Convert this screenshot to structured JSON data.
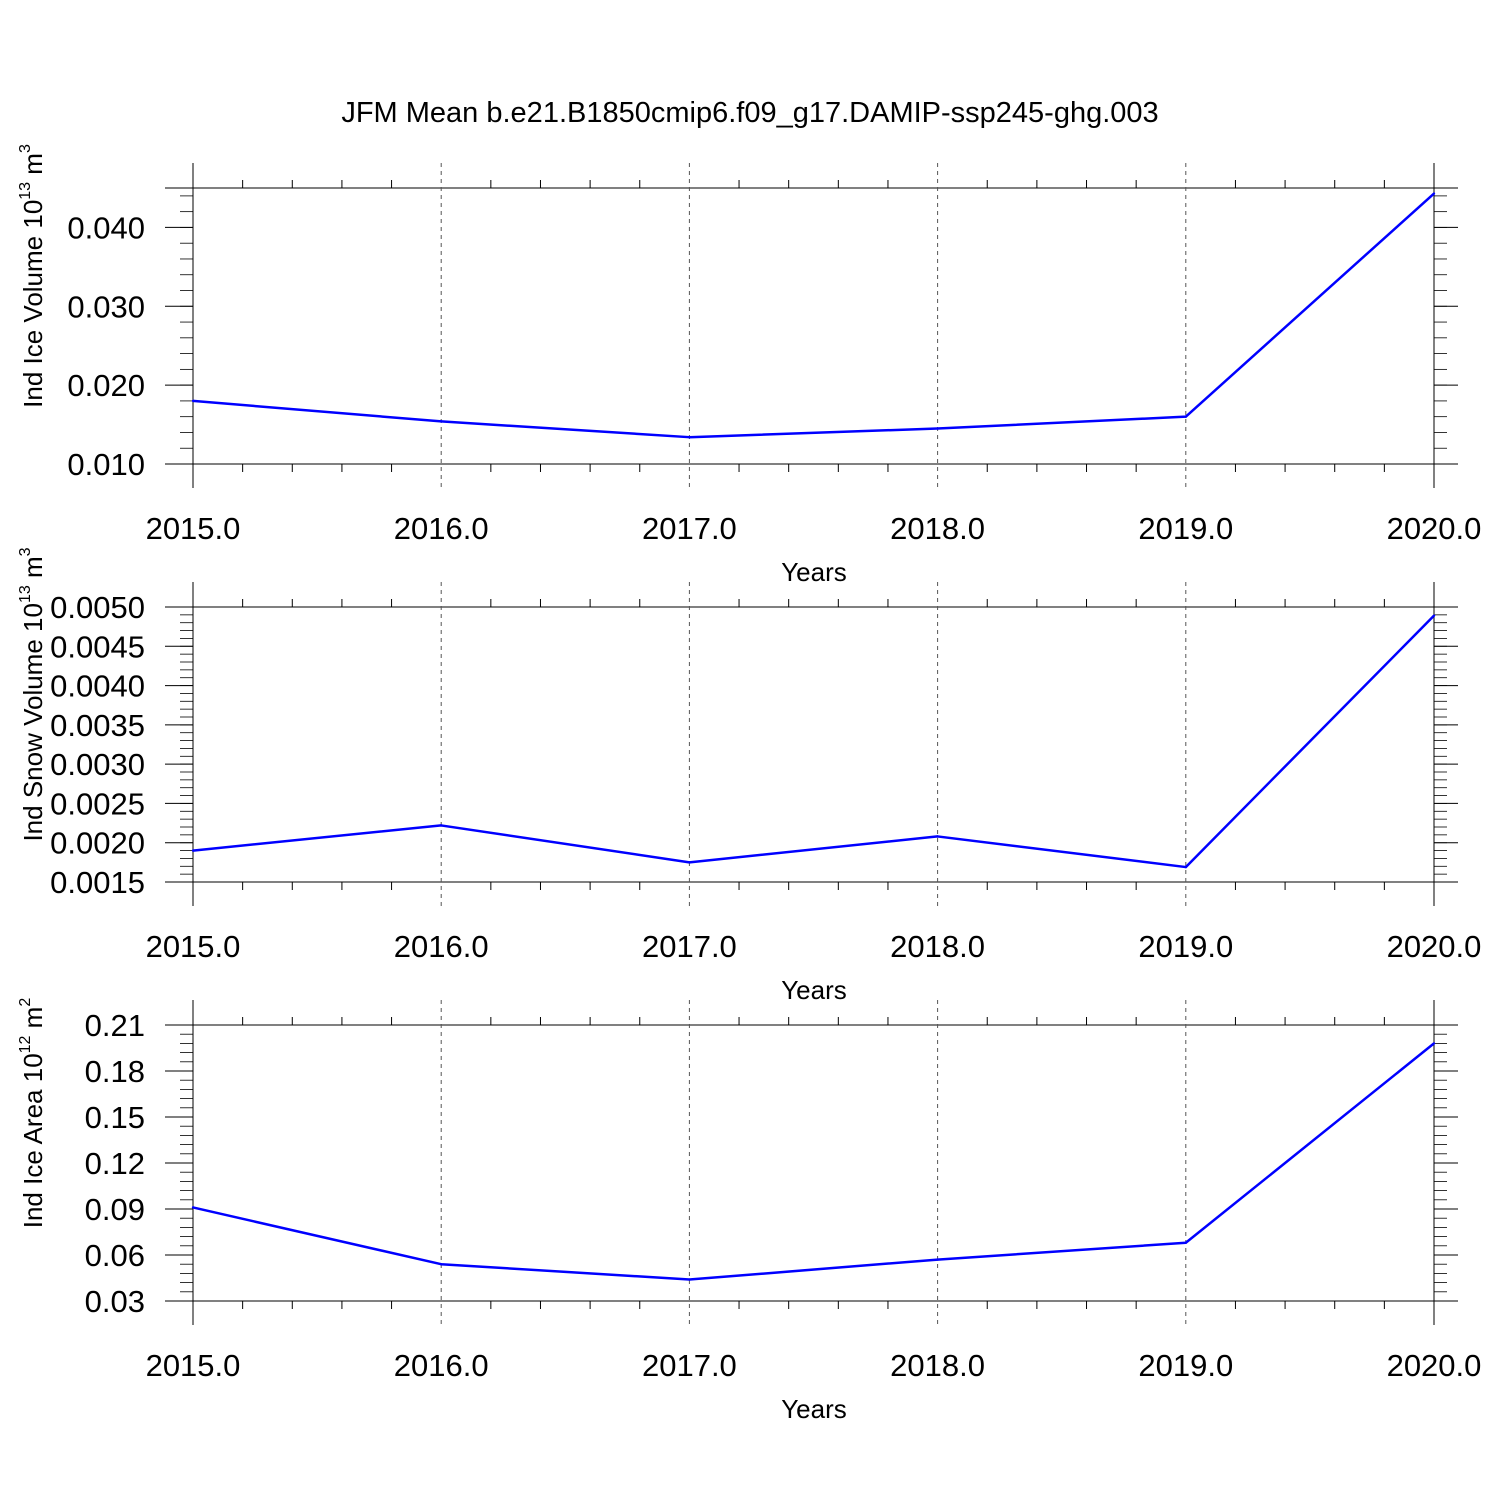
{
  "figure": {
    "title": "JFM Mean b.e21.B1850cmip6.f09_g17.DAMIP-ssp245-ghg.003"
  },
  "chart_data": [
    {
      "type": "line",
      "xlabel": "Years",
      "ylabel": "Ind Ice Volume 10",
      "ylabel_exp": "13",
      "ylabel_unit": " m",
      "ylabel_unit_exp": "3",
      "xlim": [
        2015,
        2020
      ],
      "ylim": [
        0.01,
        0.045
      ],
      "xticks": [
        2015,
        2016,
        2017,
        2018,
        2019,
        2020
      ],
      "xticklabels": [
        "2015.0",
        "2016.0",
        "2017.0",
        "2018.0",
        "2019.0",
        "2020.0"
      ],
      "yticks": [
        0.01,
        0.02,
        0.03,
        0.04
      ],
      "yticklabels": [
        "0.010",
        "0.020",
        "0.030",
        "0.040"
      ],
      "grid": "x dashed",
      "color": "#0000ff",
      "x": [
        2015,
        2016,
        2017,
        2018,
        2019,
        2020
      ],
      "y": [
        0.018,
        0.0154,
        0.0134,
        0.0145,
        0.016,
        0.0443
      ]
    },
    {
      "type": "line",
      "xlabel": "Years",
      "ylabel": "Ind Snow Volume 10",
      "ylabel_exp": "13",
      "ylabel_unit": " m",
      "ylabel_unit_exp": "3",
      "xlim": [
        2015,
        2020
      ],
      "ylim": [
        0.0015,
        0.005
      ],
      "xticks": [
        2015,
        2016,
        2017,
        2018,
        2019,
        2020
      ],
      "xticklabels": [
        "2015.0",
        "2016.0",
        "2017.0",
        "2018.0",
        "2019.0",
        "2020.0"
      ],
      "yticks": [
        0.0015,
        0.002,
        0.0025,
        0.003,
        0.0035,
        0.004,
        0.0045,
        0.005
      ],
      "yticklabels": [
        "0.0015",
        "0.0020",
        "0.0025",
        "0.0030",
        "0.0035",
        "0.0040",
        "0.0045",
        "0.0050"
      ],
      "grid": "x dashed",
      "color": "#0000ff",
      "x": [
        2015,
        2016,
        2017,
        2018,
        2019,
        2020
      ],
      "y": [
        0.0019,
        0.00222,
        0.00175,
        0.00208,
        0.00169,
        0.00489
      ]
    },
    {
      "type": "line",
      "xlabel": "Years",
      "ylabel": "Ind Ice Area 10",
      "ylabel_exp": "12",
      "ylabel_unit": " m",
      "ylabel_unit_exp": "2",
      "xlim": [
        2015,
        2020
      ],
      "ylim": [
        0.03,
        0.21
      ],
      "xticks": [
        2015,
        2016,
        2017,
        2018,
        2019,
        2020
      ],
      "xticklabels": [
        "2015.0",
        "2016.0",
        "2017.0",
        "2018.0",
        "2019.0",
        "2020.0"
      ],
      "yticks": [
        0.03,
        0.06,
        0.09,
        0.12,
        0.15,
        0.18,
        0.21
      ],
      "yticklabels": [
        "0.03",
        "0.06",
        "0.09",
        "0.12",
        "0.15",
        "0.18",
        "0.21"
      ],
      "grid": "x dashed",
      "color": "#0000ff",
      "x": [
        2015,
        2016,
        2017,
        2018,
        2019,
        2020
      ],
      "y": [
        0.091,
        0.054,
        0.044,
        0.057,
        0.068,
        0.198
      ]
    }
  ]
}
